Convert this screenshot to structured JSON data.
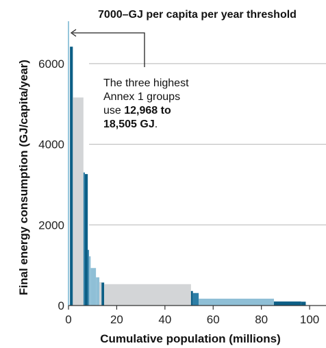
{
  "chart_data": {
    "type": "bar",
    "title": "7000–GJ per capita per year threshold",
    "xlabel": "Cumulative population (millions)",
    "ylabel": "Final energy consumption (GJ/capita/year)",
    "xlim": [
      0,
      105
    ],
    "ylim": [
      0,
      7000
    ],
    "x_ticks": [
      0,
      20,
      40,
      60,
      80,
      100
    ],
    "x_tick_labels": [
      "0",
      "20",
      "40",
      "60",
      "80",
      "100"
    ],
    "y_ticks": [
      0,
      2000,
      4000,
      6000
    ],
    "y_tick_labels": [
      "0",
      "2000",
      "4000",
      "6000"
    ],
    "threshold": 7000,
    "annotation": {
      "lines": [
        [
          {
            "text": "The three highest",
            "bold": false
          }
        ],
        [
          {
            "text": "Annex 1 groups",
            "bold": false
          }
        ],
        [
          {
            "text": "use ",
            "bold": false
          },
          {
            "text": "12,968 to",
            "bold": true
          }
        ],
        [
          {
            "text": "18,505 GJ",
            "bold": true
          },
          {
            "text": ".",
            "bold": false
          }
        ]
      ]
    },
    "colors": {
      "dark": "#0d5f86",
      "mid": "#2d7ea6",
      "light": "#8fbfd6",
      "gray": "#d3d5d7",
      "threshold": "#5ea7c8",
      "grid": "#b5b5b5"
    },
    "bars": [
      {
        "x0": 0.6,
        "x1": 1.8,
        "value": 6420,
        "color": "dark"
      },
      {
        "x0": 1.8,
        "x1": 6.2,
        "value": 5160,
        "color": "gray"
      },
      {
        "x0": 6.2,
        "x1": 6.8,
        "value": 3300,
        "color": "mid"
      },
      {
        "x0": 6.8,
        "x1": 8.0,
        "value": 3260,
        "color": "dark"
      },
      {
        "x0": 8.0,
        "x1": 8.5,
        "value": 1380,
        "color": "mid"
      },
      {
        "x0": 8.5,
        "x1": 9.2,
        "value": 1220,
        "color": "light"
      },
      {
        "x0": 9.2,
        "x1": 11.4,
        "value": 930,
        "color": "light"
      },
      {
        "x0": 11.4,
        "x1": 12.8,
        "value": 700,
        "color": "light"
      },
      {
        "x0": 12.8,
        "x1": 13.7,
        "value": 580,
        "color": "gray"
      },
      {
        "x0": 13.7,
        "x1": 14.8,
        "value": 570,
        "color": "dark"
      },
      {
        "x0": 14.8,
        "x1": 50.8,
        "value": 530,
        "color": "gray"
      },
      {
        "x0": 50.8,
        "x1": 51.6,
        "value": 360,
        "color": "dark"
      },
      {
        "x0": 51.6,
        "x1": 54.0,
        "value": 310,
        "color": "mid"
      },
      {
        "x0": 54.0,
        "x1": 85.2,
        "value": 170,
        "color": "light"
      },
      {
        "x0": 85.2,
        "x1": 96.5,
        "value": 100,
        "color": "dark"
      },
      {
        "x0": 96.5,
        "x1": 98.4,
        "value": 95,
        "color": "dark"
      }
    ]
  }
}
